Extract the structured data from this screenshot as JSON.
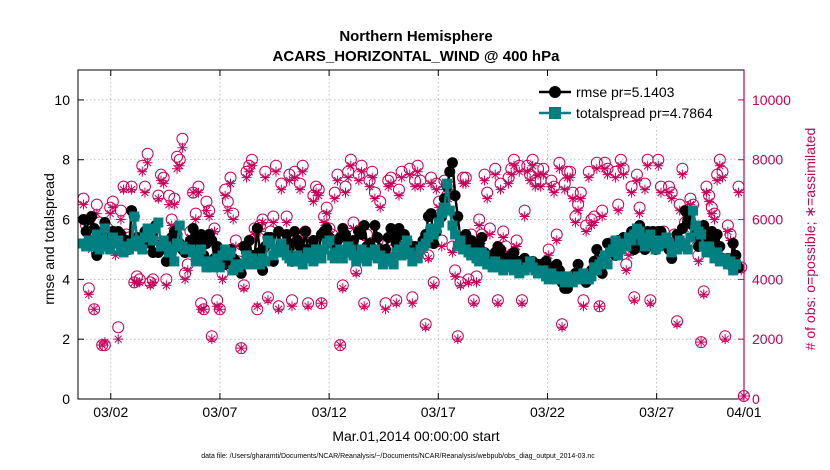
{
  "chart_data": {
    "type": "line",
    "title": "Northern Hemisphere",
    "subtitle": "ACARS_HORIZONTAL_WIND @ 400 hPa",
    "xlabel": "Mar.01,2014 00:00:00 start",
    "ylabel": "rmse and totalspread",
    "ylabel_right": "# of obs: o=possible; ∗=assimilated",
    "footnote": "data file: /Users/gharamti/Documents/NCAR/Reanalysis/~/Documents/NCAR/Reanalysis/webpub/obs_diag_output_2014-03.nc",
    "xlim": [
      0.5,
      31.0
    ],
    "ylim": [
      0,
      11
    ],
    "ylim_right": [
      0,
      11000
    ],
    "x_ticks": [
      {
        "value": 2,
        "label": "03/02"
      },
      {
        "value": 7,
        "label": "03/07"
      },
      {
        "value": 12,
        "label": "03/12"
      },
      {
        "value": 17,
        "label": "03/17"
      },
      {
        "value": 22,
        "label": "03/22"
      },
      {
        "value": 27,
        "label": "03/27"
      },
      {
        "value": 31,
        "label": "04/01"
      }
    ],
    "y_ticks": [
      "0",
      "2",
      "4",
      "6",
      "8",
      "10"
    ],
    "y_ticks_right": [
      "0",
      "2000",
      "4000",
      "6000",
      "8000",
      "10000"
    ],
    "grid": true,
    "legend_position": "top-right",
    "colors": {
      "rmse": "#000000",
      "totalspread": "#008080",
      "obs": "#c8005a"
    },
    "series": [
      {
        "name": "rmse pr=5.1403",
        "axis": "left",
        "values": [
          6.0,
          5.6,
          6.0,
          6.1,
          5.7,
          4.8,
          5.5,
          5.1,
          5.9,
          5.2,
          5.4,
          5.6,
          5.3,
          5.6,
          5.5,
          5.1,
          5.3,
          5.0,
          6.3,
          6.1,
          5.4,
          5.2,
          5.3,
          5.6,
          5.6,
          5.2,
          4.9,
          5.8,
          4.9,
          5.0,
          5.1,
          4.6,
          5.2,
          5.4,
          5.6,
          5.5,
          5.2,
          5.0,
          4.9,
          5.1,
          5.3,
          5.7,
          5.4,
          5.2,
          5.5,
          4.8,
          5.2,
          5.5,
          5.3,
          4.7,
          5.1,
          5.0,
          4.9,
          4.5,
          4.8,
          5.0,
          4.7,
          4.6,
          4.4,
          4.2,
          5.1,
          4.9,
          5.3,
          4.8,
          4.8,
          5.7,
          4.9,
          4.3,
          5.1,
          5.4,
          5.4,
          4.6,
          4.9,
          5.6,
          5.0,
          5.2,
          5.5,
          5.2,
          4.6,
          5.6,
          5.3,
          5.1,
          5.0,
          5.6,
          5.0,
          4.8,
          5.3,
          4.7,
          5.0,
          5.5,
          5.6,
          5.7,
          5.4,
          5.2,
          5.1,
          5.3,
          5.4,
          5.7,
          5.5,
          5.3,
          5.0,
          5.3,
          5.0,
          5.6,
          5.5,
          5.8,
          5.1,
          5.2,
          5.0,
          5.8,
          5.4,
          5.0,
          4.9,
          5.0,
          5.4,
          5.7,
          5.5,
          5.2,
          5.7,
          5.5,
          5.5,
          5.3,
          5.0,
          4.8,
          5.1,
          4.9,
          5.0,
          5.3,
          5.5,
          6.1,
          6.2,
          5.2,
          5.6,
          6.0,
          6.1,
          6.7,
          7.1,
          7.6,
          7.9,
          6.8,
          6.1,
          5.3,
          5.3,
          5.5,
          5.2,
          5.3,
          4.8,
          5.0,
          5.2,
          5.4,
          4.9,
          4.6,
          4.5,
          4.7,
          4.9,
          5.1,
          5.0,
          4.7,
          4.7,
          4.5,
          4.8,
          4.9,
          4.5,
          4.6,
          4.5,
          4.7,
          4.5,
          4.5,
          4.6,
          4.4,
          4.5,
          4.5,
          4.4,
          4.6,
          4.4,
          4.2,
          4.3,
          4.5,
          4.3,
          3.9,
          3.7,
          3.7,
          3.9,
          4.1,
          4.2,
          4.5,
          4.1,
          4.0,
          3.9,
          4.1,
          4.3,
          4.6,
          5.0,
          4.6,
          4.2,
          4.7,
          5.2,
          4.9,
          5.1,
          4.8,
          5.3,
          5.2,
          5.4,
          5.3,
          5.3,
          5.6,
          5.0,
          5.4,
          5.8,
          5.2,
          5.0,
          5.6,
          5.3,
          5.6,
          5.0,
          5.6,
          5.6,
          5.4,
          5.2,
          5.0,
          4.7,
          5.0,
          5.5,
          5.3,
          5.7,
          6.3,
          5.9,
          6.2,
          5.8,
          5.5,
          5.1,
          5.2,
          5.8,
          5.4,
          5.4,
          5.6,
          5.3,
          5.5,
          5.1,
          4.7,
          4.6,
          4.7,
          4.5,
          5.2,
          4.8,
          4.4
        ]
      },
      {
        "name": "totalspread pr=4.7864",
        "axis": "left",
        "values": [
          5.2,
          5.1,
          5.3,
          5.1,
          5.2,
          5.5,
          5.0,
          5.3,
          5.7,
          5.1,
          5.0,
          5.4,
          5.2,
          5.3,
          5.0,
          4.9,
          5.1,
          5.0,
          5.2,
          6.1,
          5.3,
          5.1,
          5.0,
          5.4,
          5.7,
          5.6,
          5.3,
          5.7,
          5.9,
          5.1,
          5.3,
          5.1,
          4.9,
          5.0,
          4.6,
          5.2,
          5.8,
          5.1,
          5.0,
          5.0,
          5.0,
          4.9,
          4.6,
          4.7,
          5.0,
          4.6,
          4.4,
          4.6,
          4.4,
          4.5,
          4.7,
          4.4,
          4.8,
          5.0,
          4.8,
          4.9,
          4.3,
          4.5,
          4.4,
          4.5,
          4.5,
          4.8,
          4.5,
          4.7,
          4.6,
          4.5,
          4.5,
          4.7,
          4.6,
          5.3,
          5.2,
          4.8,
          5.0,
          4.9,
          5.2,
          5.0,
          4.8,
          4.7,
          4.6,
          4.6,
          4.8,
          4.6,
          4.5,
          4.7,
          4.9,
          4.8,
          4.6,
          5.0,
          4.8,
          4.7,
          5.0,
          5.2,
          5.3,
          4.8,
          4.7,
          4.9,
          5.0,
          4.7,
          4.9,
          5.1,
          5.0,
          4.8,
          4.6,
          4.8,
          5.0,
          4.7,
          4.6,
          4.9,
          4.8,
          5.0,
          4.7,
          4.8,
          4.5,
          4.7,
          4.6,
          4.7,
          4.5,
          4.9,
          5.0,
          4.8,
          5.1,
          5.3,
          4.9,
          4.6,
          4.8,
          4.7,
          5.0,
          5.1,
          5.2,
          5.4,
          5.7,
          5.5,
          5.7,
          5.9,
          6.2,
          6.4,
          7.2,
          6.3,
          5.8,
          5.5,
          5.1,
          5.3,
          5.0,
          5.0,
          4.9,
          4.8,
          4.9,
          4.7,
          4.6,
          4.9,
          4.8,
          4.5,
          4.5,
          4.4,
          4.6,
          4.4,
          4.5,
          4.3,
          4.4,
          4.5,
          4.4,
          4.3,
          4.5,
          4.2,
          4.3,
          4.3,
          4.4,
          4.6,
          4.4,
          4.3,
          4.2,
          4.2,
          4.3,
          4.1,
          4.0,
          4.2,
          4.1,
          4.0,
          4.1,
          4.0,
          3.9,
          4.1,
          4.0,
          3.9,
          4.0,
          4.1,
          4.0,
          4.2,
          4.1,
          4.0,
          4.1,
          4.4,
          4.3,
          4.5,
          4.6,
          4.8,
          4.5,
          4.9,
          5.0,
          5.3,
          4.8,
          5.0,
          5.2,
          5.1,
          5.4,
          5.3,
          5.5,
          5.7,
          5.6,
          5.3,
          5.1,
          5.4,
          5.5,
          5.2,
          5.0,
          5.1,
          5.3,
          5.2,
          5.4,
          5.2,
          4.9,
          5.1,
          5.0,
          5.3,
          5.1,
          5.2,
          5.0,
          5.4,
          6.3,
          5.8,
          5.6,
          5.5,
          5.1,
          4.9,
          5.1,
          4.9,
          4.7,
          4.9,
          4.6,
          4.6,
          4.7,
          4.5,
          4.6,
          4.3,
          4.5
        ]
      },
      {
        "name": "possible",
        "axis": "right",
        "values": [
          6700,
          5800,
          3700,
          5300,
          3000,
          6500,
          5900,
          1800,
          1800,
          5700,
          6400,
          6600,
          5000,
          2400,
          6300,
          7100,
          5500,
          5400,
          7100,
          3900,
          4100,
          4000,
          7800,
          7100,
          8200,
          3900,
          4000,
          5400,
          6800,
          7500,
          7400,
          4000,
          6800,
          6000,
          6700,
          8100,
          8000,
          8700,
          4200,
          4500,
          5600,
          6900,
          6200,
          7100,
          3200,
          3000,
          6600,
          6300,
          2100,
          5700,
          3300,
          3000,
          4200,
          7000,
          6600,
          7400,
          6200,
          5300,
          4600,
          1700,
          3800,
          7600,
          7800,
          8000,
          5700,
          3000,
          5800,
          6000,
          7600,
          3400,
          5600,
          6100,
          7800,
          3100,
          7200,
          5000,
          6100,
          7500,
          3300,
          7600,
          5300,
          7200,
          7800,
          5600,
          3200,
          5100,
          6800,
          7100,
          7000,
          3200,
          6100,
          6400,
          5700,
          5500,
          6900,
          7500,
          1800,
          3800,
          7100,
          7600,
          8000,
          5900,
          4300,
          7500,
          7800,
          3200,
          5500,
          7300,
          7600,
          6900,
          5300,
          6600,
          5200,
          3200,
          7300,
          7400,
          5000,
          3300,
          7000,
          7600,
          5000,
          5200,
          7700,
          3400,
          7300,
          7800,
          7300,
          5100,
          2500,
          4800,
          7400,
          3900,
          7200,
          6600,
          5300,
          7300,
          6800,
          7100,
          5100,
          4300,
          2100,
          3900,
          7400,
          7400,
          4000,
          5500,
          3300,
          4100,
          6000,
          5500,
          7500,
          6900,
          5700,
          4800,
          7700,
          3300,
          7200,
          5600,
          5100,
          7400,
          7700,
          8000,
          5300,
          7800,
          3300,
          6300,
          7800,
          7500,
          8000,
          7300,
          7700,
          7300,
          7700,
          4400,
          5000,
          7300,
          7100,
          5500,
          7900,
          2500,
          7200,
          7600,
          7600,
          6900,
          6100,
          6500,
          6900,
          3300,
          5800,
          7600,
          6000,
          6100,
          7900,
          3100,
          6300,
          7900,
          7700,
          5200,
          5100,
          7600,
          6500,
          8000,
          7700,
          4500,
          5000,
          7100,
          3400,
          7500,
          6400,
          5200,
          7200,
          8000,
          3300,
          5500,
          5200,
          8000,
          7100,
          5600,
          5300,
          7100,
          6900,
          5500,
          2600,
          6500,
          7700,
          5900,
          6200,
          6700,
          6500,
          5500,
          4800,
          1900,
          3600,
          7100,
          6800,
          6400,
          6200,
          7500,
          8000,
          7600,
          2100,
          5800,
          5500,
          4400,
          4500,
          7100,
          4400,
          100
        ]
      },
      {
        "name": "assimilated",
        "axis": "right",
        "values": [
          6500,
          5600,
          3500,
          5000,
          3000,
          6200,
          5600,
          1800,
          1900,
          5400,
          6200,
          6400,
          4800,
          2000,
          6000,
          7000,
          5300,
          5100,
          7000,
          3900,
          3900,
          3900,
          7600,
          6900,
          7900,
          3800,
          3900,
          5300,
          6700,
          7300,
          7200,
          3800,
          6500,
          5800,
          6500,
          7700,
          7800,
          8400,
          4000,
          4300,
          5400,
          6900,
          6000,
          6900,
          3000,
          3000,
          6300,
          6100,
          2000,
          5600,
          3100,
          3000,
          4000,
          6800,
          6300,
          7200,
          6000,
          5100,
          4400,
          1700,
          3700,
          7400,
          7600,
          7800,
          5500,
          3100,
          5600,
          5900,
          7400,
          3300,
          5300,
          5900,
          7600,
          3000,
          7000,
          4900,
          5900,
          7300,
          3100,
          7400,
          5100,
          7000,
          7600,
          5400,
          3100,
          4900,
          6600,
          6900,
          6800,
          3200,
          5900,
          6200,
          5500,
          5300,
          6700,
          7300,
          1800,
          3700,
          6900,
          7400,
          7800,
          5700,
          4200,
          7300,
          7600,
          3100,
          5300,
          7100,
          7400,
          6700,
          5100,
          6400,
          5000,
          3000,
          7100,
          7200,
          4800,
          3200,
          6800,
          7400,
          4800,
          5000,
          7500,
          3200,
          7100,
          7600,
          7100,
          4900,
          2400,
          4700,
          7200,
          3800,
          7000,
          6400,
          5100,
          7100,
          6600,
          6900,
          4900,
          4100,
          2000,
          3800,
          7200,
          7200,
          3900,
          5300,
          3200,
          3900,
          5800,
          5300,
          7300,
          6700,
          5500,
          4600,
          7500,
          3200,
          7000,
          5400,
          4900,
          7200,
          7500,
          7800,
          5100,
          7600,
          3200,
          6100,
          7600,
          7300,
          7800,
          7100,
          7500,
          7100,
          7500,
          4300,
          4800,
          7100,
          6900,
          5300,
          7700,
          2400,
          7000,
          7400,
          7400,
          6700,
          5900,
          6300,
          6700,
          3100,
          5600,
          7400,
          5800,
          5900,
          7700,
          3100,
          6100,
          7700,
          7500,
          5000,
          4900,
          7400,
          6300,
          7800,
          7500,
          4300,
          4800,
          6900,
          3300,
          7300,
          6200,
          5000,
          7000,
          7800,
          3200,
          5300,
          5000,
          7800,
          6900,
          5400,
          5100,
          6900,
          6700,
          5300,
          2500,
          6300,
          7500,
          5700,
          6000,
          6500,
          6300,
          5300,
          4600,
          1900,
          3500,
          6900,
          6600,
          6200,
          6000,
          7300,
          7800,
          7400,
          2000,
          5600,
          5300,
          4300,
          4400,
          6900,
          4300,
          100
        ]
      }
    ]
  }
}
